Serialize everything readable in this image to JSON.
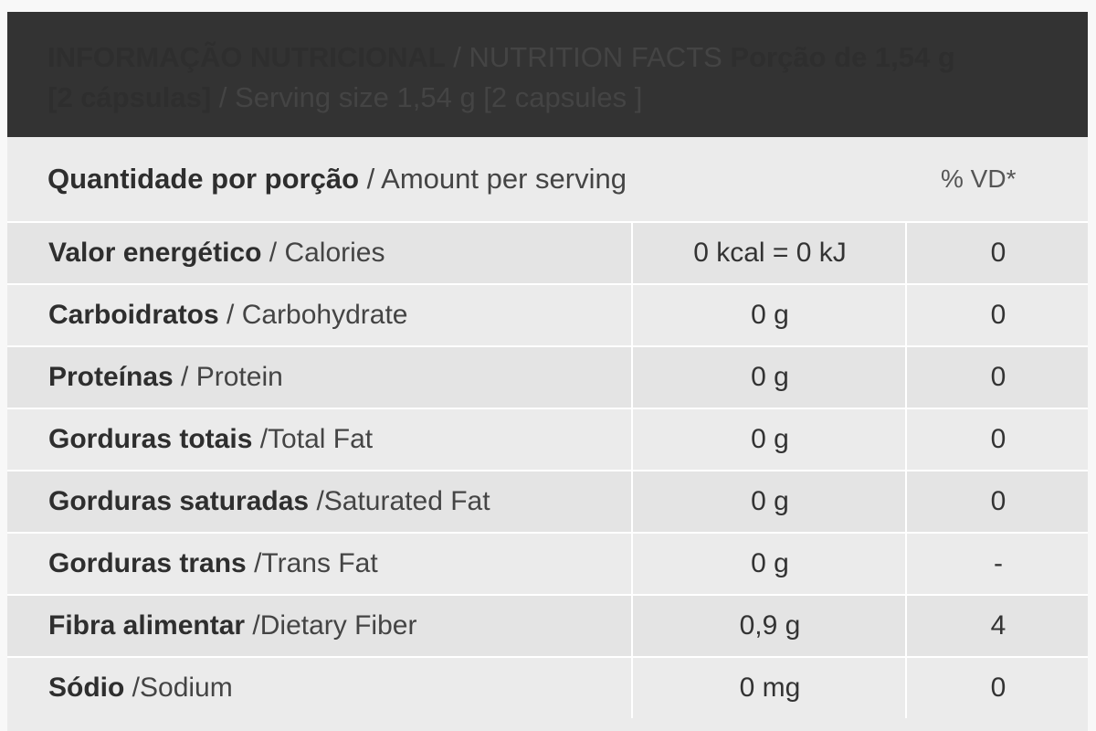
{
  "header": {
    "title_pt": "INFORMAÇÃO NUTRICIONAL",
    "title_sep": " / ",
    "title_en": "NUTRITION FACTS",
    "serving_pt_line1": " Porção de 1,54 g",
    "serving_pt_line2": "[2 cápsulas]",
    "serving_sep": " / ",
    "serving_en": "Serving size 1,54 g [2 capsules ]"
  },
  "amount_row": {
    "label_pt": "Quantidade por porção",
    "sep": " / ",
    "label_en": "Amount per serving",
    "vd_label": "% VD*"
  },
  "rows": [
    {
      "name_pt": "Valor energético",
      "sep": " / ",
      "name_en": "Calories",
      "amount": "0 kcal = 0 kJ",
      "vd": "0"
    },
    {
      "name_pt": "Carboidratos",
      "sep": " / ",
      "name_en": "Carbohydrate",
      "amount": "0 g",
      "vd": "0"
    },
    {
      "name_pt": "Proteínas",
      "sep": " / ",
      "name_en": "Protein",
      "amount": "0 g",
      "vd": "0"
    },
    {
      "name_pt": "Gorduras totais",
      "sep": " /",
      "name_en": "Total Fat",
      "amount": "0 g",
      "vd": "0"
    },
    {
      "name_pt": "Gorduras saturadas",
      "sep": " /",
      "name_en": "Saturated Fat",
      "amount": "0 g",
      "vd": "0"
    },
    {
      "name_pt": "Gorduras trans",
      "sep": " /",
      "name_en": "Trans Fat",
      "amount": "0 g",
      "vd": "-"
    },
    {
      "name_pt": "Fibra alimentar",
      "sep": " /",
      "name_en": "Dietary Fiber",
      "amount": "0,9 g",
      "vd": "4"
    },
    {
      "name_pt": "Sódio",
      "sep": " /",
      "name_en": "Sodium",
      "amount": "0 mg",
      "vd": "0"
    }
  ]
}
